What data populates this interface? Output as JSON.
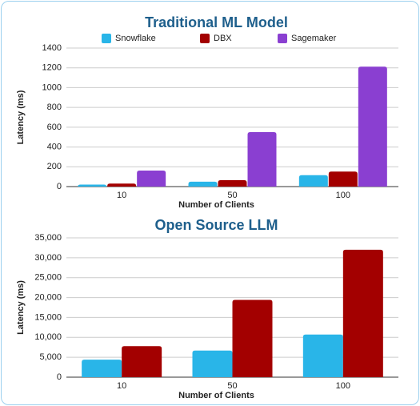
{
  "chart_data": [
    {
      "type": "bar",
      "title": "Traditional ML Model",
      "x_label": "Number of Clients",
      "y_label": "Latency (ms)",
      "categories": [
        "10",
        "50",
        "100"
      ],
      "series": [
        {
          "name": "Snowflake",
          "color": "#29b5e8",
          "values": [
            20,
            50,
            115
          ]
        },
        {
          "name": "DBX",
          "color": "#a30000",
          "values": [
            30,
            65,
            152
          ]
        },
        {
          "name": "Sagemaker",
          "color": "#8a3fd1",
          "values": [
            162,
            550,
            1212
          ]
        }
      ],
      "ylim": [
        0,
        1400
      ],
      "yticks": [
        0,
        200,
        400,
        600,
        800,
        1000,
        1200,
        1400
      ],
      "grid": true,
      "legend": "top"
    },
    {
      "type": "bar",
      "title": "Open Source LLM",
      "x_label": "Number of Clients",
      "y_label": "Latency (ms)",
      "categories": [
        "10",
        "50",
        "100"
      ],
      "series": [
        {
          "color": "#29b5e8",
          "values": [
            4400,
            6700,
            10700
          ]
        },
        {
          "color": "#a30000",
          "values": [
            7800,
            19400,
            32000
          ]
        }
      ],
      "ylim": [
        0,
        35000
      ],
      "yticks": [
        0,
        {
          "value": 5000,
          "label": "5,000"
        },
        {
          "value": 10000,
          "label": "10,000"
        },
        {
          "value": 15000,
          "label": "15,000"
        },
        {
          "value": 20000,
          "label": "20,000"
        },
        {
          "value": 25000,
          "label": "25,000"
        },
        {
          "value": 30000,
          "label": "30,000"
        },
        {
          "value": 35000,
          "label": "35,000"
        }
      ],
      "grid": true
    }
  ]
}
